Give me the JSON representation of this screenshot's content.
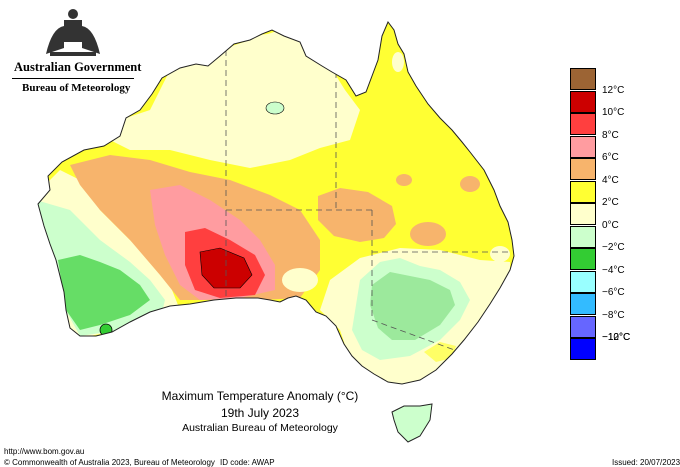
{
  "header": {
    "government": "Australian Government",
    "bureau": "Bureau of Meteorology"
  },
  "caption": {
    "title": "Maximum Temperature Anomaly (°C)",
    "date": "19th July 2023",
    "agency": "Australian Bureau of Meteorology"
  },
  "legend": {
    "items": [
      {
        "label": "12°C",
        "color": "#9c6434"
      },
      {
        "label": "10°C",
        "color": "#cc0000"
      },
      {
        "label": "8°C",
        "color": "#ff3f3f"
      },
      {
        "label": "6°C",
        "color": "#ff9ca0"
      },
      {
        "label": "4°C",
        "color": "#f7b46c"
      },
      {
        "label": "2°C",
        "color": "#ffff33"
      },
      {
        "label": "0°C",
        "color": "#ffffcc"
      },
      {
        "label": "−2°C",
        "color": "#ccffcc"
      },
      {
        "label": "−4°C",
        "color": "#33cc33"
      },
      {
        "label": "−6°C",
        "color": "#99ffff"
      },
      {
        "label": "−8°C",
        "color": "#33bbff"
      },
      {
        "label": "−10°C",
        "color": "#6666ff"
      },
      {
        "label": "−12°C",
        "color": "#0000ff"
      }
    ]
  },
  "footer": {
    "url": "http://www.bom.gov.au",
    "copyright": "© Commonwealth of Australia 2023, Bureau of Meteorology",
    "id_code": "ID code: AWAP",
    "issued": "Issued: 20/07/2023"
  }
}
